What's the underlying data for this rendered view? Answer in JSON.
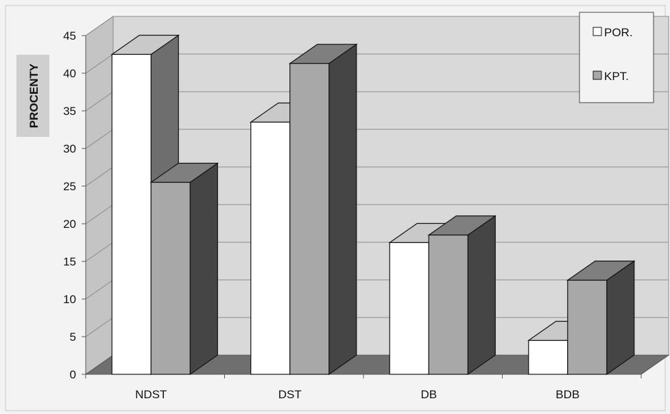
{
  "chart_data": {
    "type": "bar",
    "categories": [
      "NDST",
      "DST",
      "DB",
      "BDB"
    ],
    "series": [
      {
        "name": "POR.",
        "values": [
          42.5,
          33.5,
          17.5,
          4.5
        ],
        "color": "#ffffff"
      },
      {
        "name": "KPT.",
        "values": [
          25.5,
          41.3,
          18.5,
          12.5
        ],
        "color": "#a8a8a8"
      }
    ],
    "ylabel": "PROCENTY",
    "ylim": [
      0,
      45
    ],
    "yticks": [
      "0",
      "5",
      "10",
      "15",
      "20",
      "25",
      "30",
      "35",
      "40",
      "45"
    ],
    "grid": true,
    "legend_position": "top-right",
    "style": "3d-clustered-column"
  }
}
